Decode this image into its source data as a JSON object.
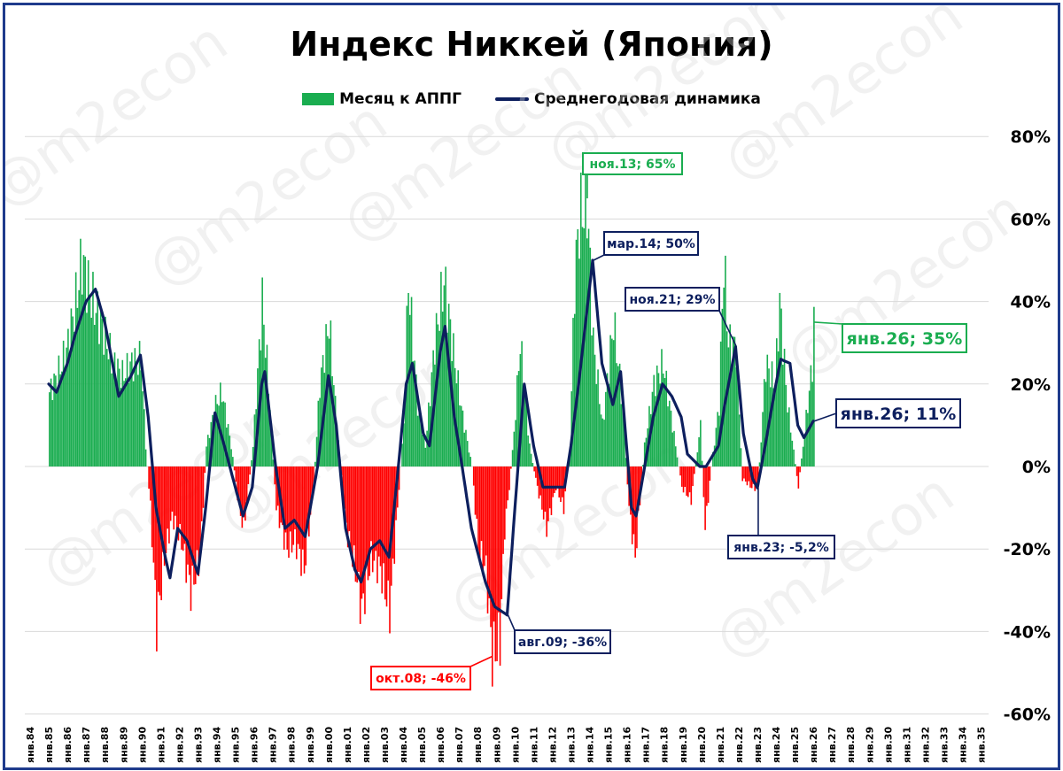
{
  "title": "Индекс Никкей (Япония)",
  "legend": {
    "bars": "Месяц к АППГ",
    "line": "Среднегодовая динамика"
  },
  "watermark": "@m2econ",
  "colors": {
    "positive": "#1aad50",
    "negative": "#ff0000",
    "line": "#0d1f5e",
    "frame": "#1f3b8c",
    "grid": "#d9d9d9"
  },
  "chart_data": {
    "type": "bar",
    "y_axis": {
      "side": "right",
      "min": -60,
      "max": 80,
      "step": 20,
      "unit": "%",
      "ticks": [
        "-60%",
        "-40%",
        "-20%",
        "0%",
        "20%",
        "40%",
        "60%",
        "80%"
      ]
    },
    "x_axis": {
      "labels": [
        "янв.84",
        "янв.85",
        "янв.86",
        "янв.87",
        "янв.88",
        "янв.89",
        "янв.90",
        "янв.91",
        "янв.92",
        "янв.93",
        "янв.94",
        "янв.95",
        "янв.96",
        "янв.97",
        "янв.98",
        "янв.99",
        "янв.00",
        "янв.01",
        "янв.02",
        "янв.03",
        "янв.04",
        "янв.05",
        "янв.06",
        "янв.07",
        "янв.08",
        "янв.09",
        "янв.10",
        "янв.11",
        "янв.12",
        "янв.13",
        "янв.14",
        "янв.15",
        "янв.16",
        "янв.17",
        "янв.18",
        "янв.19",
        "янв.20",
        "янв.21",
        "янв.22",
        "янв.23",
        "янв.24",
        "янв.25",
        "янв.26",
        "янв.27",
        "янв.28",
        "янв.29",
        "янв.30",
        "янв.31",
        "янв.32",
        "янв.33",
        "янв.34",
        "янв.35"
      ]
    },
    "grid": true,
    "legend_position": "top",
    "series": [
      {
        "name": "Месяц к АППГ",
        "kind": "bar",
        "note": "Monthly y/y change, % (approx. keypoints, interpolated)",
        "keypoints": [
          [
            "1985-01",
            18
          ],
          [
            "1985-06",
            22
          ],
          [
            "1985-12",
            28
          ],
          [
            "1986-06",
            40
          ],
          [
            "1986-10",
            50
          ],
          [
            "1987-03",
            42
          ],
          [
            "1987-10",
            35
          ],
          [
            "1988-06",
            25
          ],
          [
            "1988-12",
            22
          ],
          [
            "1989-06",
            25
          ],
          [
            "1989-12",
            26
          ],
          [
            "1990-03",
            5
          ],
          [
            "1990-06",
            -10
          ],
          [
            "1990-10",
            -38
          ],
          [
            "1991-03",
            -22
          ],
          [
            "1991-08",
            -12
          ],
          [
            "1992-02",
            -18
          ],
          [
            "1992-08",
            -30
          ],
          [
            "1993-02",
            -22
          ],
          [
            "1993-06",
            5
          ],
          [
            "1993-12",
            15
          ],
          [
            "1994-04",
            18
          ],
          [
            "1994-10",
            5
          ],
          [
            "1995-03",
            -10
          ],
          [
            "1995-06",
            -15
          ],
          [
            "1995-12",
            5
          ],
          [
            "1996-06",
            40
          ],
          [
            "1996-10",
            20
          ],
          [
            "1997-03",
            -10
          ],
          [
            "1997-10",
            -20
          ],
          [
            "1998-03",
            -18
          ],
          [
            "1998-09",
            -25
          ],
          [
            "1999-03",
            -5
          ],
          [
            "1999-07",
            20
          ],
          [
            "2000-01",
            35
          ],
          [
            "2000-06",
            10
          ],
          [
            "2000-12",
            -15
          ],
          [
            "2001-06",
            -25
          ],
          [
            "2001-10",
            -35
          ],
          [
            "2002-04",
            -22
          ],
          [
            "2002-10",
            -25
          ],
          [
            "2003-04",
            -35
          ],
          [
            "2003-09",
            -10
          ],
          [
            "2004-01",
            10
          ],
          [
            "2004-04",
            45
          ],
          [
            "2004-10",
            15
          ],
          [
            "2005-03",
            5
          ],
          [
            "2005-09",
            30
          ],
          [
            "2006-03",
            45
          ],
          [
            "2006-10",
            25
          ],
          [
            "2007-03",
            12
          ],
          [
            "2007-09",
            0
          ],
          [
            "2008-01",
            -20
          ],
          [
            "2008-06",
            -25
          ],
          [
            "2008-10",
            -46
          ],
          [
            "2009-03",
            -42
          ],
          [
            "2009-06",
            -15
          ],
          [
            "2009-09",
            -5
          ],
          [
            "2009-12",
            8
          ],
          [
            "2010-04",
            30
          ],
          [
            "2010-10",
            5
          ],
          [
            "2011-03",
            -5
          ],
          [
            "2011-09",
            -15
          ],
          [
            "2012-03",
            -5
          ],
          [
            "2012-08",
            -10
          ],
          [
            "2012-12",
            5
          ],
          [
            "2013-03",
            45
          ],
          [
            "2013-06",
            60
          ],
          [
            "2013-11",
            65
          ],
          [
            "2014-03",
            30
          ],
          [
            "2014-09",
            10
          ],
          [
            "2015-04",
            35
          ],
          [
            "2015-10",
            15
          ],
          [
            "2016-02",
            -10
          ],
          [
            "2016-06",
            -22
          ],
          [
            "2016-12",
            5
          ],
          [
            "2017-06",
            20
          ],
          [
            "2017-12",
            25
          ],
          [
            "2018-06",
            10
          ],
          [
            "2018-12",
            -5
          ],
          [
            "2019-06",
            -8
          ],
          [
            "2019-12",
            10
          ],
          [
            "2020-03",
            -15
          ],
          [
            "2020-07",
            0
          ],
          [
            "2020-12",
            15
          ],
          [
            "2021-03",
            50
          ],
          [
            "2021-06",
            30
          ],
          [
            "2021-11",
            29
          ],
          [
            "2022-03",
            -3
          ],
          [
            "2022-09",
            -5
          ],
          [
            "2023-01",
            -5.2
          ],
          [
            "2023-06",
            25
          ],
          [
            "2023-12",
            20
          ],
          [
            "2024-03",
            40
          ],
          [
            "2024-08",
            15
          ],
          [
            "2025-03",
            -5
          ],
          [
            "2025-06",
            5
          ],
          [
            "2025-12",
            25
          ],
          [
            "2026-01",
            35
          ]
        ]
      },
      {
        "name": "Среднегодовая динамика",
        "kind": "line",
        "note": "Average annual change, % (approx.)",
        "keypoints": [
          [
            "1985-01",
            20
          ],
          [
            "1985-06",
            18
          ],
          [
            "1986-01",
            25
          ],
          [
            "1986-06",
            32
          ],
          [
            "1987-01",
            40
          ],
          [
            "1987-07",
            43
          ],
          [
            "1988-01",
            35
          ],
          [
            "1988-10",
            17
          ],
          [
            "1989-06",
            22
          ],
          [
            "1989-12",
            27
          ],
          [
            "1990-05",
            12
          ],
          [
            "1990-10",
            -10
          ],
          [
            "1991-04",
            -22
          ],
          [
            "1991-07",
            -27
          ],
          [
            "1991-12",
            -15
          ],
          [
            "1992-06",
            -18
          ],
          [
            "1993-01",
            -26
          ],
          [
            "1993-06",
            -10
          ],
          [
            "1993-12",
            13
          ],
          [
            "1994-06",
            5
          ],
          [
            "1995-01",
            -5
          ],
          [
            "1995-06",
            -12
          ],
          [
            "1995-12",
            -5
          ],
          [
            "1996-06",
            20
          ],
          [
            "1996-08",
            23
          ],
          [
            "1997-03",
            0
          ],
          [
            "1997-09",
            -15
          ],
          [
            "1998-03",
            -13
          ],
          [
            "1998-10",
            -17
          ],
          [
            "1999-06",
            0
          ],
          [
            "2000-01",
            22
          ],
          [
            "2000-06",
            10
          ],
          [
            "2000-12",
            -15
          ],
          [
            "2001-06",
            -25
          ],
          [
            "2001-10",
            -28
          ],
          [
            "2002-04",
            -20
          ],
          [
            "2002-10",
            -18
          ],
          [
            "2003-04",
            -22
          ],
          [
            "2003-10",
            0
          ],
          [
            "2004-03",
            20
          ],
          [
            "2004-07",
            25
          ],
          [
            "2005-02",
            8
          ],
          [
            "2005-06",
            5
          ],
          [
            "2006-01",
            28
          ],
          [
            "2006-04",
            34
          ],
          [
            "2006-10",
            12
          ],
          [
            "2007-03",
            0
          ],
          [
            "2007-09",
            -15
          ],
          [
            "2008-06",
            -28
          ],
          [
            "2008-12",
            -34
          ],
          [
            "2009-08",
            -36
          ],
          [
            "2010-01",
            -10
          ],
          [
            "2010-07",
            20
          ],
          [
            "2011-01",
            5
          ],
          [
            "2011-07",
            -5
          ],
          [
            "2012-03",
            -5
          ],
          [
            "2012-09",
            -5
          ],
          [
            "2013-01",
            5
          ],
          [
            "2013-06",
            20
          ],
          [
            "2013-12",
            40
          ],
          [
            "2014-03",
            50
          ],
          [
            "2014-09",
            25
          ],
          [
            "2015-04",
            15
          ],
          [
            "2015-09",
            23
          ],
          [
            "2016-04",
            -10
          ],
          [
            "2016-07",
            -12
          ],
          [
            "2017-06",
            12
          ],
          [
            "2017-12",
            20
          ],
          [
            "2018-06",
            17
          ],
          [
            "2018-12",
            12
          ],
          [
            "2019-04",
            3
          ],
          [
            "2019-12",
            0
          ],
          [
            "2020-04",
            0
          ],
          [
            "2020-12",
            5
          ],
          [
            "2021-04",
            15
          ],
          [
            "2021-11",
            29
          ],
          [
            "2022-04",
            8
          ],
          [
            "2022-10",
            -3
          ],
          [
            "2023-01",
            -5.2
          ],
          [
            "2023-06",
            5
          ],
          [
            "2023-12",
            18
          ],
          [
            "2024-04",
            26
          ],
          [
            "2024-10",
            25
          ],
          [
            "2025-03",
            10
          ],
          [
            "2025-07",
            7
          ],
          [
            "2026-01",
            11
          ]
        ]
      }
    ],
    "annotations": [
      {
        "text": "ноя.13; 65%",
        "color": "#1aad50",
        "at": [
          "2013-11",
          65
        ]
      },
      {
        "text": "мар.14; 50%",
        "color": "#0d1f5e",
        "at": [
          "2014-03",
          50
        ]
      },
      {
        "text": "ноя.21; 29%",
        "color": "#0d1f5e",
        "at": [
          "2021-11",
          29
        ]
      },
      {
        "text": "янв.26; 35%",
        "color": "#1aad50",
        "at": [
          "2026-01",
          35
        ]
      },
      {
        "text": "янв.26; 11%",
        "color": "#0d1f5e",
        "at": [
          "2026-01",
          11
        ]
      },
      {
        "text": "янв.23; -5,2%",
        "color": "#0d1f5e",
        "at": [
          "2023-01",
          -5.2
        ]
      },
      {
        "text": "авг.09; -36%",
        "color": "#0d1f5e",
        "at": [
          "2009-08",
          -36
        ]
      },
      {
        "text": "окт.08; -46%",
        "color": "#ff0000",
        "at": [
          "2008-10",
          -46
        ]
      }
    ]
  }
}
